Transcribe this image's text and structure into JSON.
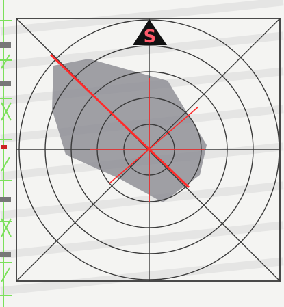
{
  "figure": {
    "marker_label": "S",
    "colors": {
      "page_background": "#f4f4f2",
      "grid_lines": "#3a3a3a",
      "frame": "#4a4a4a",
      "shaded_region": "#8f8f96",
      "highlight_lines": "#ff2a2a",
      "marker_fill": "#111111",
      "marker_text": "#ff5a6a",
      "side_ruler": "#7be05a"
    },
    "rings": 5,
    "spokes": 8
  }
}
